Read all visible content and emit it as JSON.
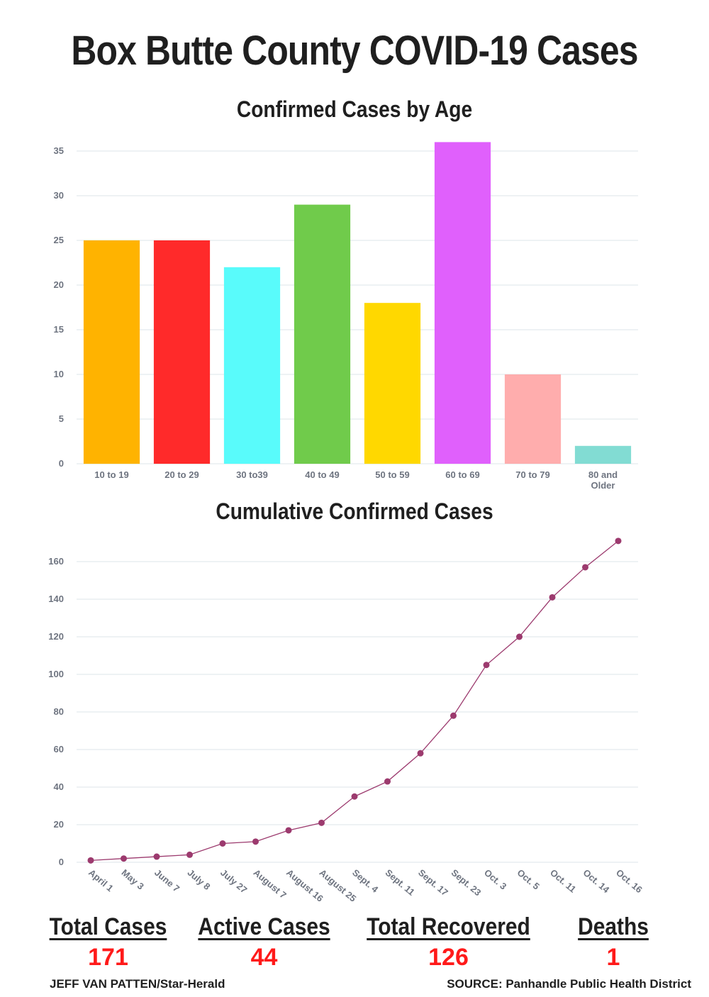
{
  "title": "Box Butte County COVID-19 Cases",
  "chart_data": [
    {
      "type": "bar",
      "title": "Confirmed Cases by Age",
      "categories": [
        "10 to 19",
        "20 to 29",
        "30 to39",
        "40 to 49",
        "50 to 59",
        "60 to 69",
        "70 to 79",
        "80 and Older"
      ],
      "values": [
        25,
        25,
        22,
        29,
        18,
        36,
        10,
        2
      ],
      "colors": [
        "#ffb300",
        "#ff2a2a",
        "#59fbfb",
        "#70cb4b",
        "#ffd800",
        "#e060fc",
        "#ffadad",
        "#82dcd3"
      ],
      "yticks": [
        0,
        5,
        10,
        15,
        20,
        25,
        30,
        35
      ],
      "ylim": [
        0,
        35
      ],
      "xlabel": "",
      "ylabel": "",
      "grid": true
    },
    {
      "type": "line",
      "title": "Cumulative Confirmed Cases",
      "categories": [
        "April 1",
        "May 3",
        "June 7",
        "July 8",
        "July 27",
        "August 7",
        "August 16",
        "August 25",
        "Sept. 4",
        "Sept. 11",
        "Sept. 17",
        "Sept. 23",
        "Oct. 3",
        "Oct. 5",
        "Oct. 11",
        "Oct. 14",
        "Oct. 16"
      ],
      "values": [
        1,
        2,
        3,
        4,
        10,
        11,
        17,
        21,
        35,
        43,
        58,
        78,
        105,
        120,
        141,
        157,
        171
      ],
      "color": "#9c3a6e",
      "yticks": [
        0,
        20,
        40,
        60,
        80,
        100,
        120,
        140,
        160
      ],
      "ylim": [
        0,
        160
      ],
      "xlabel": "",
      "ylabel": "",
      "grid": true
    }
  ],
  "stats": [
    {
      "label": "Total Cases",
      "value": "171"
    },
    {
      "label": "Active Cases",
      "value": "44"
    },
    {
      "label": "Total Recovered",
      "value": "126"
    },
    {
      "label": "Deaths",
      "value": "1"
    }
  ],
  "credit_left": "JEFF VAN PATTEN/Star-Herald",
  "credit_right": "SOURCE: Panhandle Public Health District"
}
